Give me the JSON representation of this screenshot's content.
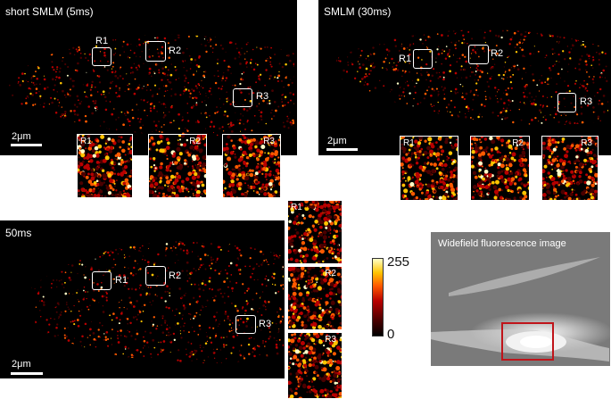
{
  "panels": {
    "short": {
      "title": "short SMLM (5ms)",
      "scale": "2μm",
      "rois": [
        "R1",
        "R2",
        "R3"
      ]
    },
    "smlm30": {
      "title": "SMLM (30ms)",
      "scale": "2μm",
      "rois": [
        "R1",
        "R2",
        "R3"
      ]
    },
    "ms50": {
      "title": "50ms",
      "scale": "2μm",
      "rois": [
        "R1",
        "R2",
        "R3"
      ]
    }
  },
  "insets": {
    "short": [
      "R1",
      "R2",
      "R3"
    ],
    "smlm30": [
      "R1",
      "R2",
      "R3"
    ],
    "ms50": [
      "R1",
      "R2",
      "R3"
    ]
  },
  "colorbar": {
    "max": "255",
    "min": "0"
  },
  "widefield": {
    "title": "Widefield fluorescence image",
    "roi_color": "#c0141a"
  },
  "colors": {
    "background": "#000000",
    "hot": [
      "#4a0000",
      "#b80000",
      "#ff5a00",
      "#ffc400",
      "#ffffc8"
    ]
  }
}
